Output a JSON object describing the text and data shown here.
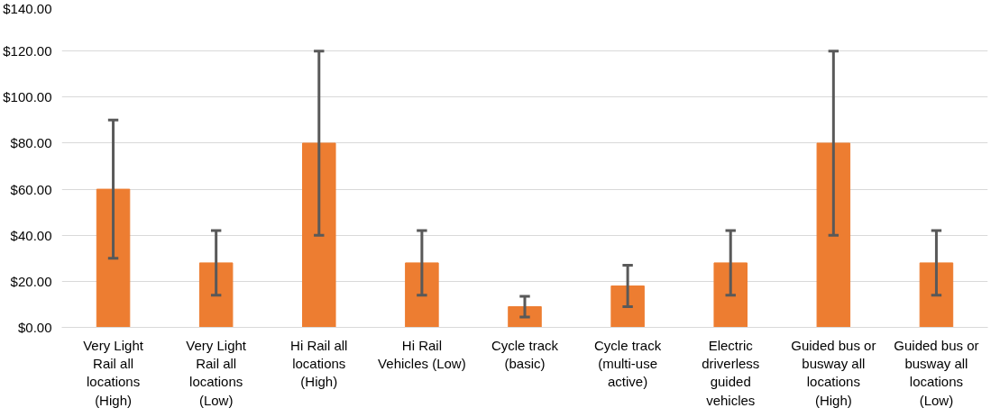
{
  "chart_data": {
    "type": "bar",
    "categories": [
      "Very Light Rail all locations (High)",
      "Very Light Rail all locations (Low)",
      "Hi Rail all locations (High)",
      "Hi Rail Vehicles (Low)",
      "Cycle track (basic)",
      "Cycle track (multi-use active)",
      "Electric driverless guided vehicles",
      "Guided bus or busway all locations (High)",
      "Guided bus or busway all locations (Low)"
    ],
    "values": [
      60,
      28,
      80,
      28,
      9,
      18,
      28,
      80,
      28
    ],
    "errors": [
      [
        30,
        90
      ],
      [
        14,
        42
      ],
      [
        40,
        120
      ],
      [
        14,
        42
      ],
      [
        4.5,
        13.5
      ],
      [
        9,
        27
      ],
      [
        14,
        42
      ],
      [
        40,
        120
      ],
      [
        14,
        42
      ]
    ],
    "color": "#ed7d31",
    "ylim": [
      0,
      140
    ],
    "yticks": [
      {
        "value": 0,
        "label": "$0.00"
      },
      {
        "value": 20,
        "label": "$20.00"
      },
      {
        "value": 40,
        "label": "$40.00"
      },
      {
        "value": 60,
        "label": "$60.00"
      },
      {
        "value": 80,
        "label": "$80.00"
      },
      {
        "value": 100,
        "label": "$100.00"
      },
      {
        "value": 120,
        "label": "$120.00"
      },
      {
        "value": 140,
        "label": "$140.00"
      }
    ],
    "grid": "y"
  }
}
